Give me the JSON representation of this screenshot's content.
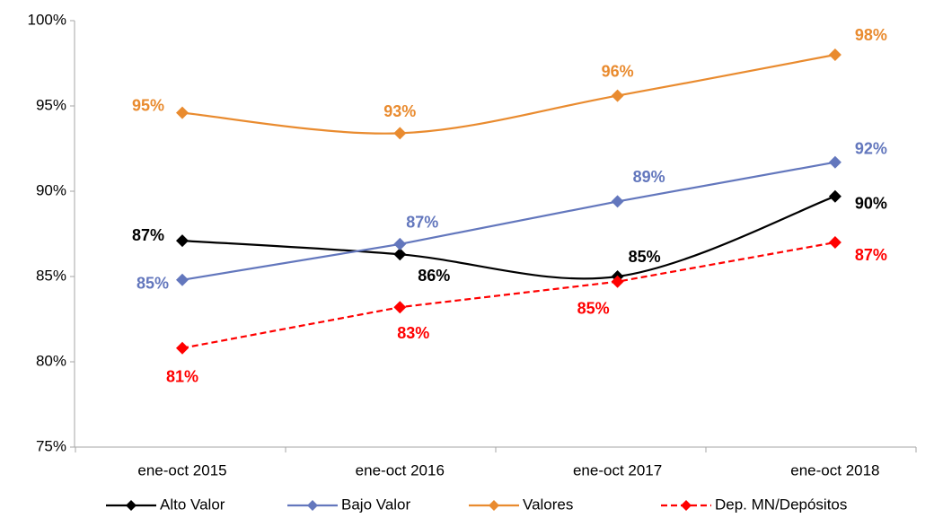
{
  "chart_data": {
    "type": "line",
    "categories": [
      "ene-oct 2015",
      "ene-oct 2016",
      "ene-oct 2017",
      "ene-oct 2018"
    ],
    "ylim": [
      75,
      100
    ],
    "yticks": [
      {
        "value": 75,
        "label": "75%"
      },
      {
        "value": 80,
        "label": "80%"
      },
      {
        "value": 85,
        "label": "85%"
      },
      {
        "value": 90,
        "label": "90%"
      },
      {
        "value": 95,
        "label": "95%"
      },
      {
        "value": 100,
        "label": "100%"
      }
    ],
    "grid": false,
    "legend": "bottom",
    "series": [
      {
        "name": "Alto Valor",
        "color": "#000000",
        "smooth": true,
        "dashed": false,
        "values": [
          87.1,
          86.3,
          85.0,
          89.7
        ],
        "value_labels": [
          "87%",
          "86%",
          "85%",
          "90%"
        ]
      },
      {
        "name": "Bajo Valor",
        "color": "#6377bd",
        "smooth": false,
        "dashed": false,
        "values": [
          84.8,
          86.9,
          89.4,
          91.7
        ],
        "value_labels": [
          "85%",
          "87%",
          "89%",
          "92%"
        ]
      },
      {
        "name": "Valores",
        "color": "#e98b2f",
        "smooth": true,
        "dashed": false,
        "values": [
          94.6,
          93.4,
          95.6,
          98.0
        ],
        "value_labels": [
          "95%",
          "93%",
          "96%",
          "98%"
        ]
      },
      {
        "name": "Dep. MN/Depósitos",
        "color": "#ff0000",
        "smooth": false,
        "dashed": true,
        "values": [
          80.8,
          83.2,
          84.7,
          87.0
        ],
        "value_labels": [
          "81%",
          "83%",
          "85%",
          "87%"
        ]
      }
    ]
  }
}
